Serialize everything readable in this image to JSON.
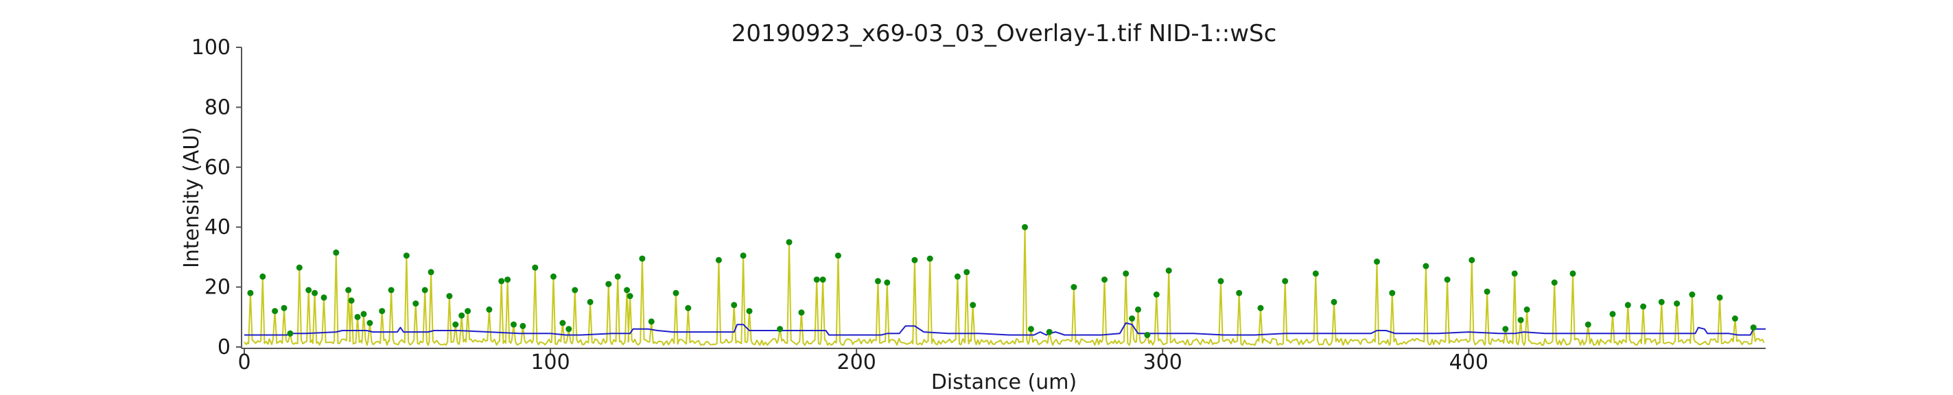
{
  "chart_data": {
    "type": "line",
    "title": "20190923_x69-03_03_Overlay-1.tif NID-1::wSc",
    "xlabel": "Distance (um)",
    "ylabel": "Intensity (AU)",
    "xlim": [
      0,
      497
    ],
    "ylim": [
      0,
      100
    ],
    "xticks": [
      0,
      100,
      200,
      300,
      400
    ],
    "yticks": [
      0,
      20,
      40,
      60,
      80,
      100
    ],
    "grid": false,
    "colors": {
      "intensity": "#c8c81e",
      "baseline": "#1f1fc8",
      "peaks": "#0a8a0a"
    },
    "peaks": [
      {
        "x": 2,
        "y": 18
      },
      {
        "x": 6,
        "y": 23.5
      },
      {
        "x": 10,
        "y": 12
      },
      {
        "x": 13,
        "y": 13
      },
      {
        "x": 15,
        "y": 4.5
      },
      {
        "x": 18,
        "y": 26.5
      },
      {
        "x": 21,
        "y": 19
      },
      {
        "x": 23,
        "y": 18
      },
      {
        "x": 26,
        "y": 16.5
      },
      {
        "x": 30,
        "y": 31.5
      },
      {
        "x": 34,
        "y": 19
      },
      {
        "x": 35,
        "y": 15.5
      },
      {
        "x": 37,
        "y": 10
      },
      {
        "x": 39,
        "y": 11
      },
      {
        "x": 41,
        "y": 8
      },
      {
        "x": 45,
        "y": 12
      },
      {
        "x": 48,
        "y": 19
      },
      {
        "x": 53,
        "y": 30.5
      },
      {
        "x": 56,
        "y": 14.5
      },
      {
        "x": 59,
        "y": 19
      },
      {
        "x": 61,
        "y": 25
      },
      {
        "x": 67,
        "y": 17
      },
      {
        "x": 69,
        "y": 7.5
      },
      {
        "x": 71,
        "y": 10.5
      },
      {
        "x": 73,
        "y": 12
      },
      {
        "x": 80,
        "y": 12.5
      },
      {
        "x": 84,
        "y": 22
      },
      {
        "x": 86,
        "y": 22.5
      },
      {
        "x": 88,
        "y": 7.5
      },
      {
        "x": 91,
        "y": 7
      },
      {
        "x": 95,
        "y": 26.5
      },
      {
        "x": 101,
        "y": 23.5
      },
      {
        "x": 104,
        "y": 8
      },
      {
        "x": 106,
        "y": 6
      },
      {
        "x": 108,
        "y": 19
      },
      {
        "x": 113,
        "y": 15
      },
      {
        "x": 119,
        "y": 21
      },
      {
        "x": 122,
        "y": 23.5
      },
      {
        "x": 125,
        "y": 19
      },
      {
        "x": 126,
        "y": 17
      },
      {
        "x": 130,
        "y": 29.5
      },
      {
        "x": 133,
        "y": 8.5
      },
      {
        "x": 141,
        "y": 18
      },
      {
        "x": 145,
        "y": 13
      },
      {
        "x": 155,
        "y": 29
      },
      {
        "x": 160,
        "y": 14
      },
      {
        "x": 163,
        "y": 30.5
      },
      {
        "x": 165,
        "y": 12
      },
      {
        "x": 175,
        "y": 6
      },
      {
        "x": 178,
        "y": 35
      },
      {
        "x": 182,
        "y": 11.5
      },
      {
        "x": 187,
        "y": 22.5
      },
      {
        "x": 189,
        "y": 22.5
      },
      {
        "x": 194,
        "y": 30.5
      },
      {
        "x": 207,
        "y": 22
      },
      {
        "x": 210,
        "y": 21.5
      },
      {
        "x": 219,
        "y": 29
      },
      {
        "x": 224,
        "y": 29.5
      },
      {
        "x": 233,
        "y": 23.5
      },
      {
        "x": 236,
        "y": 25
      },
      {
        "x": 238,
        "y": 14
      },
      {
        "x": 255,
        "y": 40
      },
      {
        "x": 257,
        "y": 6
      },
      {
        "x": 263,
        "y": 5
      },
      {
        "x": 271,
        "y": 20
      },
      {
        "x": 281,
        "y": 22.5
      },
      {
        "x": 288,
        "y": 24.5
      },
      {
        "x": 290,
        "y": 9.5
      },
      {
        "x": 292,
        "y": 12.5
      },
      {
        "x": 295,
        "y": 4
      },
      {
        "x": 298,
        "y": 17.5
      },
      {
        "x": 302,
        "y": 25.5
      },
      {
        "x": 319,
        "y": 22
      },
      {
        "x": 325,
        "y": 18
      },
      {
        "x": 332,
        "y": 13
      },
      {
        "x": 340,
        "y": 22
      },
      {
        "x": 350,
        "y": 24.5
      },
      {
        "x": 356,
        "y": 15
      },
      {
        "x": 370,
        "y": 28.5
      },
      {
        "x": 375,
        "y": 18
      },
      {
        "x": 386,
        "y": 27
      },
      {
        "x": 393,
        "y": 22.5
      },
      {
        "x": 401,
        "y": 29
      },
      {
        "x": 406,
        "y": 18.5
      },
      {
        "x": 412,
        "y": 6
      },
      {
        "x": 415,
        "y": 24.5
      },
      {
        "x": 417,
        "y": 9
      },
      {
        "x": 419,
        "y": 12.5
      },
      {
        "x": 428,
        "y": 21.5
      },
      {
        "x": 434,
        "y": 24.5
      },
      {
        "x": 439,
        "y": 7.5
      },
      {
        "x": 447,
        "y": 11
      },
      {
        "x": 452,
        "y": 14
      },
      {
        "x": 457,
        "y": 13.5
      },
      {
        "x": 463,
        "y": 15
      },
      {
        "x": 468,
        "y": 14.5
      },
      {
        "x": 473,
        "y": 17.5
      },
      {
        "x": 482,
        "y": 16.5
      },
      {
        "x": 487,
        "y": 9.5
      },
      {
        "x": 493,
        "y": 6.5
      }
    ],
    "baseline": [
      [
        0,
        4
      ],
      [
        14,
        4
      ],
      [
        15,
        4.5
      ],
      [
        20,
        4.5
      ],
      [
        30,
        5
      ],
      [
        32,
        5.5
      ],
      [
        40,
        5.5
      ],
      [
        42,
        5
      ],
      [
        50,
        5
      ],
      [
        51,
        6.5
      ],
      [
        52,
        5
      ],
      [
        60,
        5
      ],
      [
        62,
        5.5
      ],
      [
        70,
        5.5
      ],
      [
        80,
        5
      ],
      [
        90,
        4.5
      ],
      [
        100,
        4.5
      ],
      [
        105,
        4
      ],
      [
        110,
        4
      ],
      [
        120,
        4.5
      ],
      [
        126,
        4.5
      ],
      [
        127,
        6
      ],
      [
        132,
        6
      ],
      [
        135,
        5.5
      ],
      [
        140,
        5
      ],
      [
        150,
        5
      ],
      [
        160,
        5
      ],
      [
        161,
        7.5
      ],
      [
        163,
        7.5
      ],
      [
        165,
        5.5
      ],
      [
        175,
        5.5
      ],
      [
        185,
        5.5
      ],
      [
        190,
        5.5
      ],
      [
        191,
        4
      ],
      [
        200,
        4
      ],
      [
        208,
        4
      ],
      [
        210,
        4.5
      ],
      [
        214,
        4.5
      ],
      [
        216,
        7
      ],
      [
        219,
        7
      ],
      [
        222,
        5
      ],
      [
        230,
        4.5
      ],
      [
        240,
        4.5
      ],
      [
        250,
        4
      ],
      [
        258,
        4
      ],
      [
        260,
        5
      ],
      [
        262,
        4
      ],
      [
        263,
        4.5
      ],
      [
        265,
        5
      ],
      [
        268,
        4
      ],
      [
        280,
        4
      ],
      [
        286,
        4.5
      ],
      [
        288,
        8
      ],
      [
        290,
        7.5
      ],
      [
        292,
        4.5
      ],
      [
        300,
        4.5
      ],
      [
        310,
        4.5
      ],
      [
        320,
        4
      ],
      [
        330,
        4
      ],
      [
        340,
        4.5
      ],
      [
        350,
        4.5
      ],
      [
        360,
        4.5
      ],
      [
        368,
        4.5
      ],
      [
        370,
        5.5
      ],
      [
        373,
        5.5
      ],
      [
        376,
        4.5
      ],
      [
        390,
        4.5
      ],
      [
        400,
        5
      ],
      [
        410,
        4.5
      ],
      [
        415,
        4.5
      ],
      [
        418,
        5
      ],
      [
        425,
        4.5
      ],
      [
        430,
        4.5
      ],
      [
        440,
        4.5
      ],
      [
        450,
        4.5
      ],
      [
        460,
        4.5
      ],
      [
        470,
        4.5
      ],
      [
        474,
        4.5
      ],
      [
        475,
        6.5
      ],
      [
        477,
        6
      ],
      [
        478,
        4.5
      ],
      [
        485,
        4.5
      ],
      [
        488,
        4
      ],
      [
        492,
        4
      ],
      [
        493,
        6
      ],
      [
        497,
        6
      ]
    ]
  }
}
